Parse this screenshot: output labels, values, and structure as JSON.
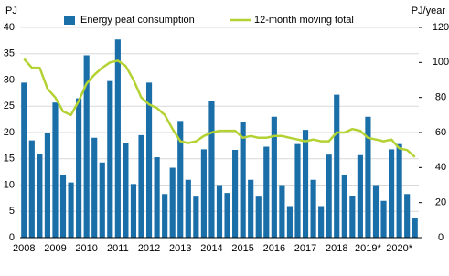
{
  "chart_data": {
    "type": "bar",
    "y_label": "PJ",
    "y2_label": "PJ/year",
    "categories": [
      "2008",
      null,
      null,
      null,
      "2009",
      null,
      null,
      null,
      "2010",
      null,
      null,
      null,
      "2011",
      null,
      null,
      null,
      "2012",
      null,
      null,
      null,
      "2013",
      null,
      null,
      null,
      "2014",
      null,
      null,
      null,
      "2015",
      null,
      null,
      null,
      "2016",
      null,
      null,
      null,
      "2017",
      null,
      null,
      null,
      "2018",
      null,
      null,
      null,
      "2019*",
      null,
      null,
      null,
      "2020*",
      null,
      null
    ],
    "series": [
      {
        "name": "Energy peat consumption",
        "color": "#1a6fa8",
        "type": "bar",
        "values": [
          29.5,
          18.5,
          16,
          20,
          25.7,
          12,
          10.5,
          26.5,
          34.7,
          19,
          14.3,
          29.8,
          37.7,
          18,
          10.2,
          19.5,
          29.5,
          15.3,
          8.3,
          13.3,
          22.2,
          11,
          7.8,
          16.8,
          26,
          10,
          8.5,
          16.7,
          22,
          11,
          7.8,
          17.3,
          23,
          10,
          6,
          17.8,
          20.5,
          11,
          6,
          15.8,
          27.2,
          12,
          8,
          15.7,
          23,
          10,
          7,
          16.8,
          17.8,
          8.3,
          3.8
        ]
      },
      {
        "name": "12-month moving total",
        "color": "#b3d233",
        "type": "line",
        "axis": "y2",
        "values": [
          102,
          97,
          97,
          85,
          80,
          72,
          70,
          78,
          88,
          93,
          97,
          100,
          101,
          98,
          90,
          80,
          76,
          74,
          70,
          62,
          55,
          54,
          55,
          58,
          60,
          61,
          61,
          61,
          57,
          58,
          57,
          57,
          58,
          58,
          57,
          56,
          55,
          56,
          55,
          55,
          60,
          60,
          62,
          61,
          57,
          56,
          55,
          56,
          51,
          50,
          46
        ]
      }
    ],
    "ylim": [
      0,
      40
    ],
    "yticks": [
      0,
      5,
      10,
      15,
      20,
      25,
      30,
      35,
      40
    ],
    "y2lim": [
      0,
      120
    ],
    "y2ticks": [
      0,
      20,
      40,
      60,
      80,
      100,
      120
    ],
    "grid": true
  }
}
